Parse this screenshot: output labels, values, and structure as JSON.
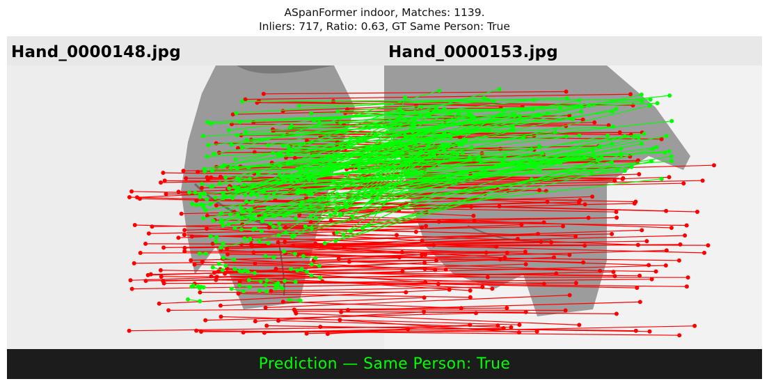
{
  "title": {
    "line1": "ASpanFormer indoor, Matches: 1139.",
    "line2": "Inliers: 717, Ratio: 0.63, GT Same Person: True"
  },
  "images": {
    "left_label": "Hand_0000148.jpg",
    "right_label": "Hand_0000153.jpg"
  },
  "prediction": {
    "text": "Prediction — Same Person: True",
    "color": "#00ff00"
  },
  "colors": {
    "inlier": "#00ff00",
    "outlier": "#ff0000",
    "header_band": "#e8e8e8",
    "footer_band": "#1c1c1c"
  },
  "stats": {
    "matches": 1139,
    "inliers": 717,
    "ratio": 0.63,
    "gt_same_person": true
  }
}
